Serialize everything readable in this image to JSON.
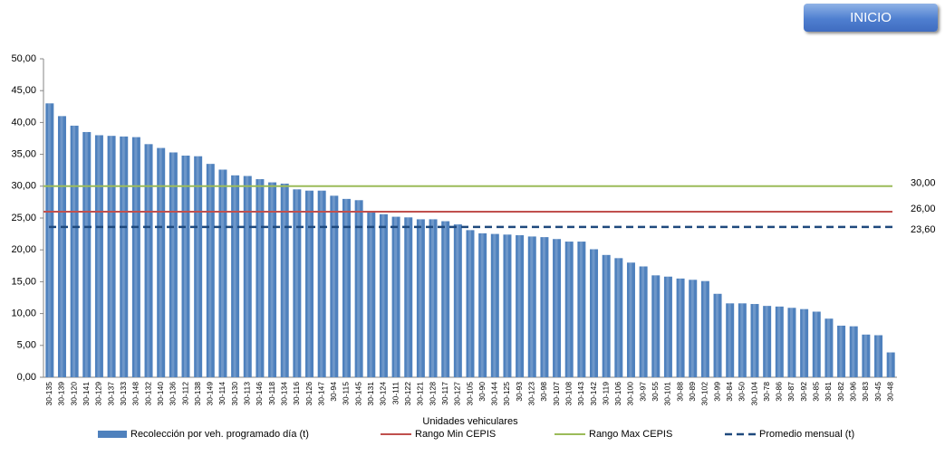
{
  "button": "INICIO",
  "chart_data": {
    "type": "bar",
    "x_label": "Unidades vehiculares",
    "categories": [
      "30-135",
      "30-139",
      "30-120",
      "30-141",
      "30-129",
      "30-137",
      "30-133",
      "30-148",
      "30-132",
      "30-140",
      "30-136",
      "30-112",
      "30-138",
      "30-149",
      "30-114",
      "30-130",
      "30-113",
      "30-146",
      "30-118",
      "30-134",
      "30-116",
      "30-126",
      "30-147",
      "30-94",
      "30-115",
      "30-145",
      "30-131",
      "30-124",
      "30-111",
      "30-122",
      "30-121",
      "30-128",
      "30-117",
      "30-127",
      "30-105",
      "30-90",
      "30-144",
      "30-125",
      "30-93",
      "30-123",
      "30-98",
      "30-107",
      "30-108",
      "30-143",
      "30-142",
      "30-119",
      "30-106",
      "30-100",
      "30-97",
      "30-55",
      "30-101",
      "30-88",
      "30-89",
      "30-102",
      "30-99",
      "30-84",
      "30-50",
      "30-104",
      "30-78",
      "30-86",
      "30-87",
      "30-92",
      "30-85",
      "30-81",
      "30-82",
      "30-96",
      "30-83",
      "30-45",
      "30-48"
    ],
    "series": [
      {
        "name": "Recolección por veh. programado día (t)",
        "color": "#4f81bd",
        "values": [
          43.0,
          41.0,
          39.5,
          38.5,
          38.0,
          37.9,
          37.8,
          37.7,
          36.6,
          36.0,
          35.3,
          34.8,
          34.7,
          33.5,
          32.6,
          31.7,
          31.6,
          31.1,
          30.6,
          30.4,
          29.5,
          29.3,
          29.3,
          28.5,
          28.0,
          27.8,
          26.1,
          25.6,
          25.2,
          25.1,
          24.8,
          24.8,
          24.5,
          24.0,
          23.1,
          22.6,
          22.5,
          22.4,
          22.3,
          22.1,
          22.0,
          21.7,
          21.3,
          21.3,
          20.1,
          19.2,
          18.7,
          18.0,
          17.4,
          16.0,
          15.8,
          15.5,
          15.3,
          15.1,
          13.1,
          11.6,
          11.6,
          11.5,
          11.2,
          11.1,
          10.9,
          10.7,
          10.3,
          9.2,
          8.1,
          8.0,
          6.7,
          6.6,
          3.9
        ]
      }
    ],
    "reference_lines": [
      {
        "name": "Rango Min CEPIS",
        "color": "#c0504d",
        "value": 26,
        "value_label": "26,00",
        "dashed": false
      },
      {
        "name": "Rango Max CEPIS",
        "color": "#9bbb59",
        "value": 30,
        "value_label": "30,00",
        "dashed": false
      },
      {
        "name": "Promedio mensual (t)",
        "color": "#1f497d",
        "value": 23.6,
        "value_label": "23,60",
        "dashed": true
      }
    ],
    "ylim": [
      0,
      50
    ],
    "yticks": [
      {
        "value": 0,
        "label": "0,00"
      },
      {
        "value": 5,
        "label": "5,00"
      },
      {
        "value": 10,
        "label": "10,00"
      },
      {
        "value": 15,
        "label": "15,00"
      },
      {
        "value": 20,
        "label": "20,00"
      },
      {
        "value": 25,
        "label": "25,00"
      },
      {
        "value": 30,
        "label": "30,00"
      },
      {
        "value": 35,
        "label": "35,00"
      },
      {
        "value": 40,
        "label": "40,00"
      },
      {
        "value": 45,
        "label": "45,00"
      },
      {
        "value": 50,
        "label": "50,00"
      }
    ],
    "grid": false
  }
}
